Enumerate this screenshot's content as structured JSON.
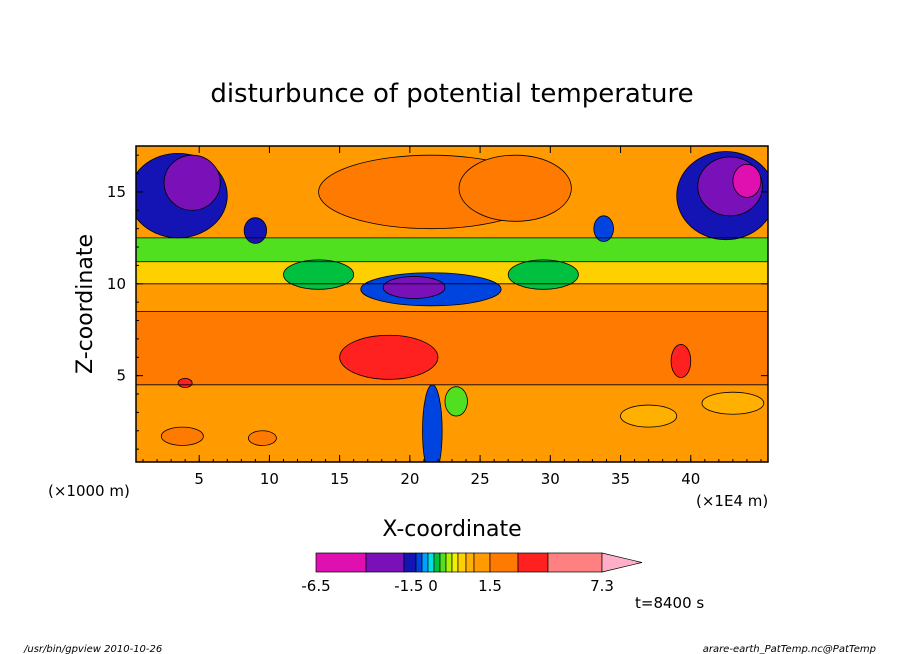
{
  "chart_data": {
    "type": "heatmap",
    "title": "disturbunce of potential temperature",
    "xlabel": "X-coordinate",
    "ylabel": "Z-coordinate",
    "x_unit": "(×1E4 m)",
    "y_unit": "(×1000 m)",
    "x_ticks": [
      "5",
      "10",
      "15",
      "20",
      "25",
      "30",
      "35",
      "40"
    ],
    "x_tick_values": [
      5,
      10,
      15,
      20,
      25,
      30,
      35,
      40
    ],
    "y_ticks": [
      "5",
      "10",
      "15"
    ],
    "y_tick_values": [
      5,
      10,
      15
    ],
    "xlim": [
      0.5,
      45.5
    ],
    "ylim": [
      0.3,
      17.5
    ],
    "time_label": "t=8400 s",
    "colorbar": {
      "labels": [
        "-6.5",
        "-1.5 0",
        "1.5",
        "7.3"
      ],
      "label_values": [
        -6.5,
        -1.5,
        1.5,
        7.3
      ],
      "levels": [
        -6.5,
        -5,
        -3,
        -1.5,
        -1.2,
        -0.9,
        -0.6,
        -0.3,
        0,
        0.3,
        0.6,
        0.9,
        1.2,
        1.5,
        3,
        5,
        7.3
      ],
      "colors": [
        "#e010b0",
        "#7a10b8",
        "#1414b4",
        "#0044e0",
        "#00a0ff",
        "#00e0e0",
        "#00c040",
        "#50e020",
        "#b0f000",
        "#f0f000",
        "#ffd000",
        "#ffb000",
        "#ff9a00",
        "#ff7a00",
        "#ff2020",
        "#ff8080"
      ],
      "extend": "right"
    },
    "bands": [
      {
        "z0": 0.3,
        "z1": 4.5,
        "level": 1.2
      },
      {
        "z0": 4.5,
        "z1": 8.5,
        "level": 1.5
      },
      {
        "z0": 8.5,
        "z1": 10.0,
        "level": 1.2
      },
      {
        "z0": 10.0,
        "z1": 11.2,
        "level": 0.6
      },
      {
        "z0": 11.2,
        "z1": 12.5,
        "level": -0.3
      },
      {
        "z0": 12.5,
        "z1": 17.5,
        "level": 1.2
      }
    ],
    "features": [
      {
        "x": 3.5,
        "z": 14.8,
        "rx": 3.5,
        "rz": 2.3,
        "level": -3
      },
      {
        "x": 4.5,
        "z": 15.5,
        "rx": 2.0,
        "rz": 1.5,
        "level": -5
      },
      {
        "x": 42.5,
        "z": 14.8,
        "rx": 3.5,
        "rz": 2.4,
        "level": -3
      },
      {
        "x": 42.8,
        "z": 15.3,
        "rx": 2.3,
        "rz": 1.6,
        "level": -5
      },
      {
        "x": 44.0,
        "z": 15.6,
        "rx": 1.0,
        "rz": 0.9,
        "level": -6.5
      },
      {
        "x": 21.5,
        "z": 15.0,
        "rx": 8.0,
        "rz": 2.0,
        "level": 1.5
      },
      {
        "x": 27.5,
        "z": 15.2,
        "rx": 4.0,
        "rz": 1.8,
        "level": 1.5
      },
      {
        "x": 21.5,
        "z": 9.7,
        "rx": 5.0,
        "rz": 0.9,
        "level": -1.5
      },
      {
        "x": 20.3,
        "z": 9.8,
        "rx": 2.2,
        "rz": 0.6,
        "level": -5
      },
      {
        "x": 13.5,
        "z": 10.5,
        "rx": 2.5,
        "rz": 0.8,
        "level": -0.6
      },
      {
        "x": 29.5,
        "z": 10.5,
        "rx": 2.5,
        "rz": 0.8,
        "level": -0.6
      },
      {
        "x": 9.0,
        "z": 12.9,
        "rx": 0.8,
        "rz": 0.7,
        "level": -3
      },
      {
        "x": 33.8,
        "z": 13.0,
        "rx": 0.7,
        "rz": 0.7,
        "level": -1.5
      },
      {
        "x": 18.5,
        "z": 6.0,
        "rx": 3.5,
        "rz": 1.2,
        "level": 3
      },
      {
        "x": 39.3,
        "z": 5.8,
        "rx": 0.7,
        "rz": 0.9,
        "level": 3
      },
      {
        "x": 4.0,
        "z": 4.6,
        "rx": 0.5,
        "rz": 0.25,
        "level": 3
      },
      {
        "x": 21.6,
        "z": 2.0,
        "rx": 0.7,
        "rz": 2.5,
        "level": -1.5
      },
      {
        "x": 23.3,
        "z": 3.6,
        "rx": 0.8,
        "rz": 0.8,
        "level": -0.3
      },
      {
        "x": 3.8,
        "z": 1.7,
        "rx": 1.5,
        "rz": 0.5,
        "level": 1.5
      },
      {
        "x": 9.5,
        "z": 1.6,
        "rx": 1.0,
        "rz": 0.4,
        "level": 1.5
      },
      {
        "x": 37.0,
        "z": 2.8,
        "rx": 2.0,
        "rz": 0.6,
        "level": 0.9
      },
      {
        "x": 43.0,
        "z": 3.5,
        "rx": 2.2,
        "rz": 0.6,
        "level": 0.9
      }
    ]
  },
  "footer": {
    "left": "/usr/bin/gpview   2010-10-26",
    "right": "arare-earth_PatTemp.nc@PatTemp"
  }
}
